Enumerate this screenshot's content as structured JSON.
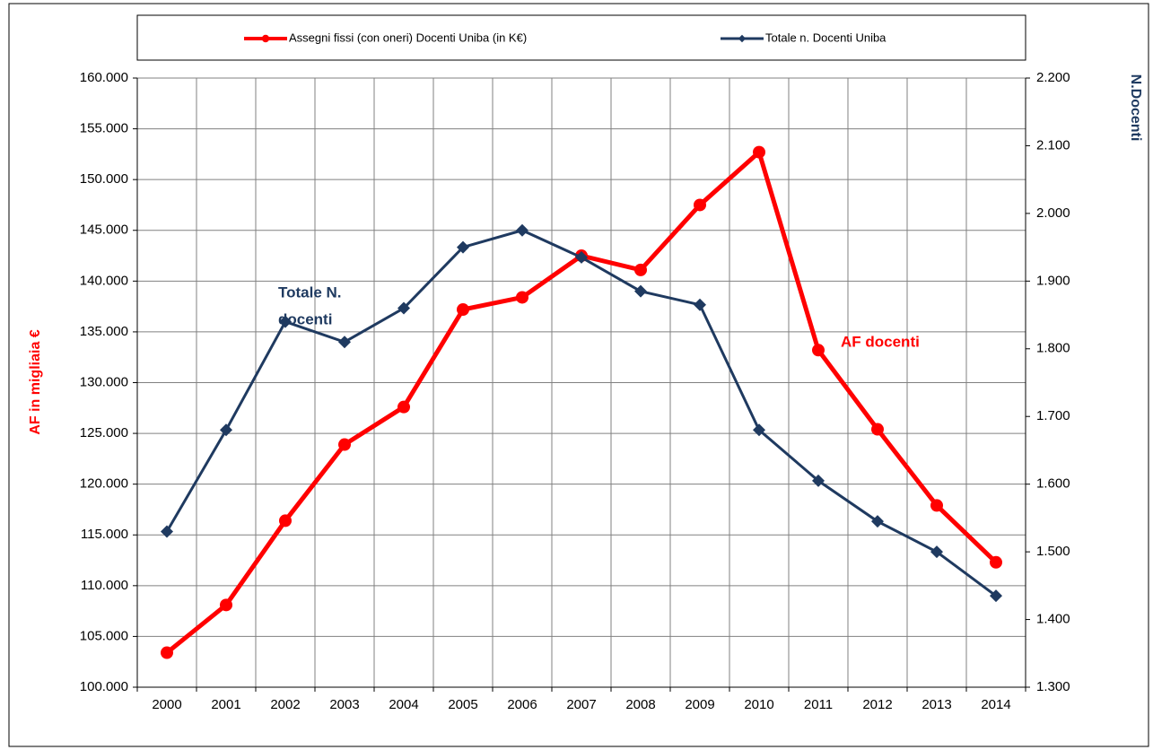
{
  "chart_data": {
    "type": "line",
    "categories": [
      "2000",
      "2001",
      "2002",
      "2003",
      "2004",
      "2005",
      "2006",
      "2007",
      "2008",
      "2009",
      "2010",
      "2011",
      "2012",
      "2013",
      "2014"
    ],
    "series": [
      {
        "name": "Assegni fissi (con oneri) Docenti Uniba  (in K€)",
        "color": "#ff0000",
        "marker": "circle",
        "values": [
          103400,
          108100,
          116400,
          123900,
          127600,
          137200,
          138400,
          142500,
          141100,
          147500,
          152700,
          133200,
          125400,
          117900,
          112300
        ]
      },
      {
        "name": "Totale n. Docenti Uniba",
        "color": "#1f3a60",
        "marker": "diamond",
        "axis": "y2",
        "values": [
          1530,
          1680,
          1840,
          1810,
          1860,
          1950,
          1975,
          1935,
          1885,
          1865,
          1680,
          1605,
          1545,
          1500,
          1435
        ]
      }
    ],
    "ylabel": "AF in migliaia €",
    "y2label": "N.Docenti",
    "ylim": [
      100000,
      160000
    ],
    "yticks": [
      {
        "value": 100000,
        "label": "100.000"
      },
      {
        "value": 105000,
        "label": "105.000"
      },
      {
        "value": 110000,
        "label": "110.000"
      },
      {
        "value": 115000,
        "label": "115.000"
      },
      {
        "value": 120000,
        "label": "120.000"
      },
      {
        "value": 125000,
        "label": "125.000"
      },
      {
        "value": 130000,
        "label": "130.000"
      },
      {
        "value": 135000,
        "label": "135.000"
      },
      {
        "value": 140000,
        "label": "140.000"
      },
      {
        "value": 145000,
        "label": "145.000"
      },
      {
        "value": 150000,
        "label": "150.000"
      },
      {
        "value": 155000,
        "label": "155.000"
      },
      {
        "value": 160000,
        "label": "160.000"
      }
    ],
    "y2lim": [
      1300,
      2200
    ],
    "y2ticks": [
      {
        "value": 1300,
        "label": "1.300"
      },
      {
        "value": 1400,
        "label": "1.400"
      },
      {
        "value": 1500,
        "label": "1.500"
      },
      {
        "value": 1600,
        "label": "1.600"
      },
      {
        "value": 1700,
        "label": "1.700"
      },
      {
        "value": 1800,
        "label": "1.800"
      },
      {
        "value": 1900,
        "label": "1.900"
      },
      {
        "value": 2000,
        "label": "2.000"
      },
      {
        "value": 2100,
        "label": "2.100"
      },
      {
        "value": 2200,
        "label": "2.200"
      }
    ],
    "grid": true,
    "legend": "top",
    "annotations": [
      {
        "text": "Totale N.",
        "color": "#1f3a60"
      },
      {
        "text": "docenti",
        "color": "#1f3a60"
      },
      {
        "text": "AF docenti",
        "color": "#ff0000"
      }
    ]
  }
}
